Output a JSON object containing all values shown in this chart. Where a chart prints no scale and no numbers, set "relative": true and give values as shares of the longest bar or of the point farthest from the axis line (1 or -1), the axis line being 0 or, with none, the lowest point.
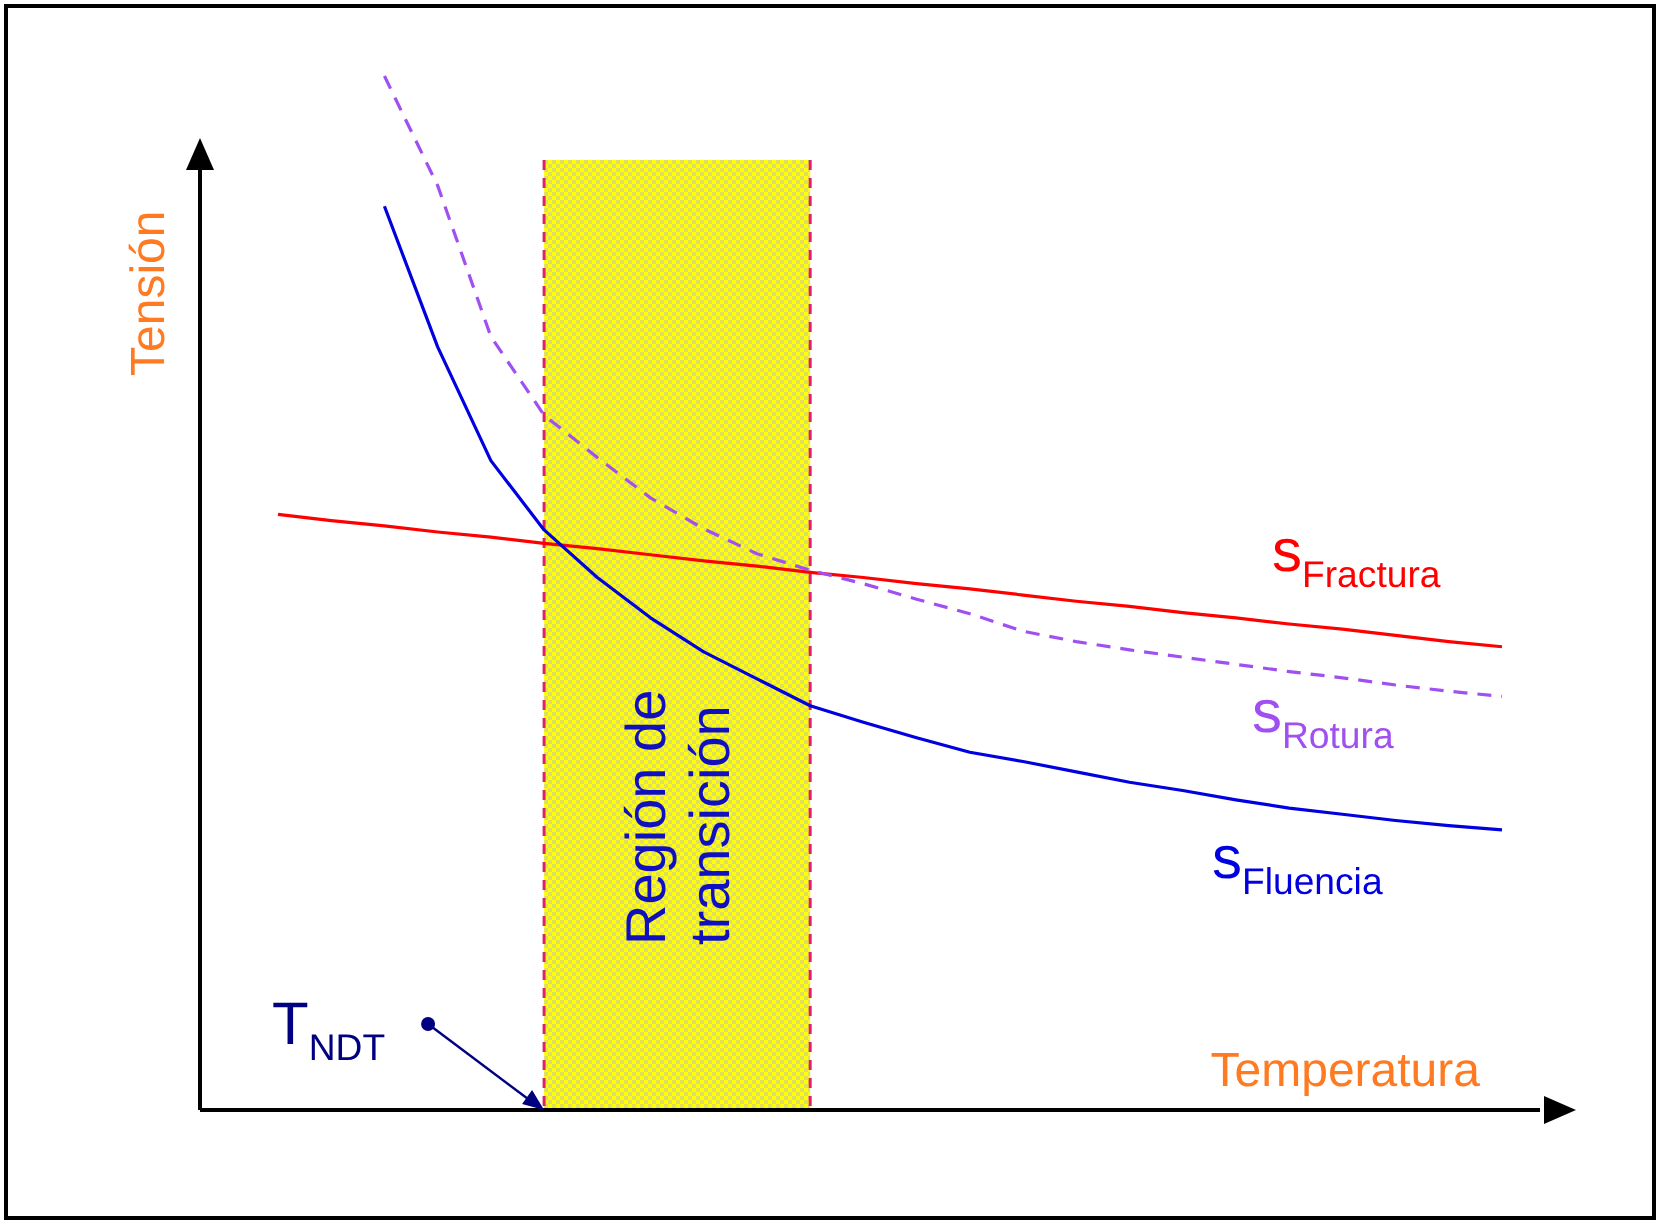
{
  "chart_data": {
    "type": "line",
    "relative": true,
    "xlabel": "Temperatura",
    "ylabel": "Tensión",
    "categories": [
      null,
      null,
      null,
      null,
      null,
      null,
      null,
      null,
      null,
      null,
      null,
      null,
      null,
      null,
      null,
      null,
      null,
      null,
      null,
      null,
      null,
      null,
      null,
      null
    ],
    "series": [
      {
        "name": "s$_{Fractura}$",
        "color": "#ff0000",
        "values": [
          0.576,
          0.57,
          0.565,
          0.559,
          0.554,
          0.548,
          0.543,
          0.537,
          0.531,
          0.526,
          0.52,
          0.515,
          0.509,
          0.504,
          0.498,
          0.492,
          0.487,
          0.481,
          0.476,
          0.47,
          0.465,
          0.459,
          0.453,
          0.448
        ]
      },
      {
        "name": "s$_{Rotura}$",
        "color": "#a050f0",
        "line_style": "dashed",
        "values": [
          null,
          null,
          1.0,
          0.894,
          0.748,
          0.672,
          0.631,
          0.592,
          0.562,
          0.538,
          0.522,
          0.509,
          0.494,
          0.48,
          0.463,
          0.453,
          0.445,
          0.438,
          0.431,
          0.424,
          0.418,
          0.411,
          0.405,
          0.4
        ]
      },
      {
        "name": "s$_{Fluencia}$",
        "color": "#0000e0",
        "values": [
          null,
          null,
          0.874,
          0.738,
          0.628,
          0.561,
          0.515,
          0.476,
          0.443,
          0.417,
          0.391,
          0.375,
          0.36,
          0.346,
          0.337,
          0.327,
          0.317,
          0.309,
          0.3,
          0.292,
          0.286,
          0.28,
          0.275,
          0.271
        ]
      }
    ],
    "annotations": [
      "T$_{NDT}$",
      "Región de transición"
    ]
  }
}
